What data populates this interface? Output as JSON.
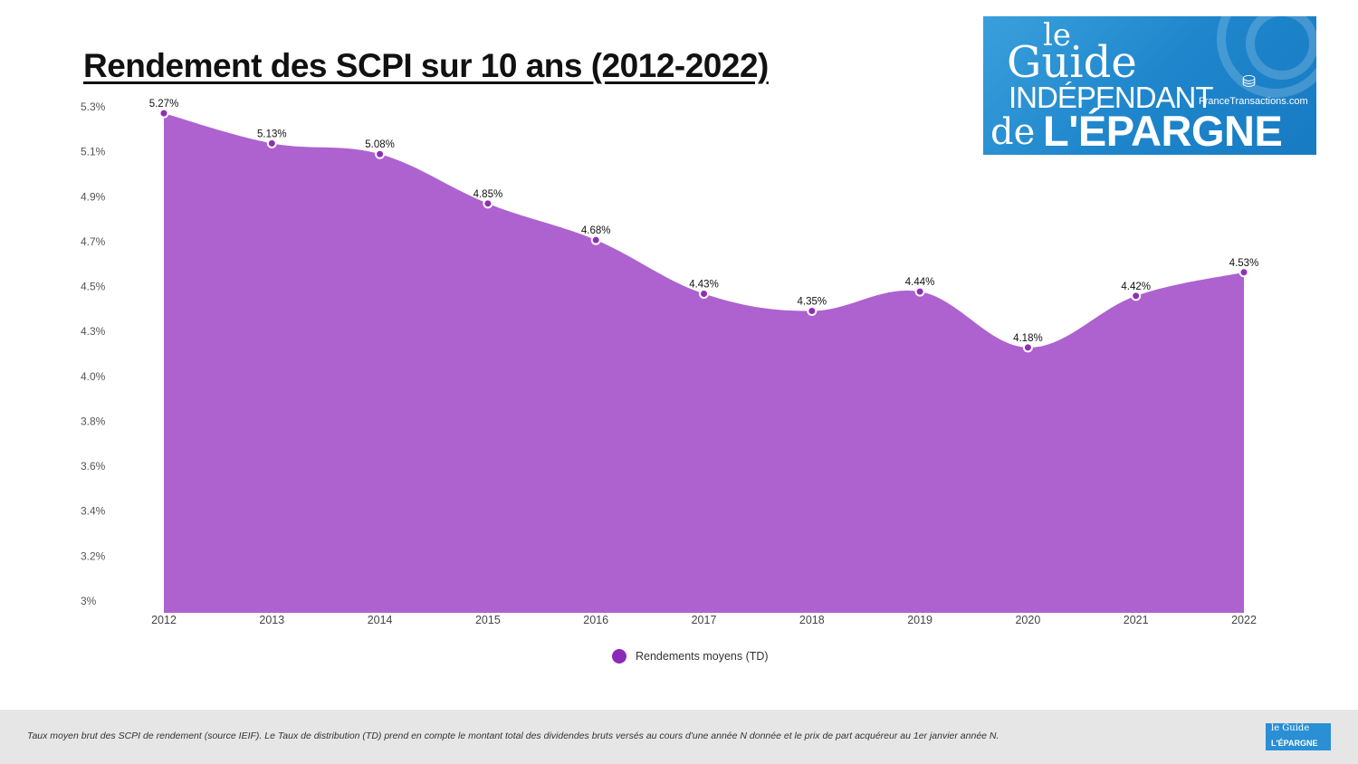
{
  "page": {
    "title": "Rendement des SCPI sur 10 ans (2012-2022)",
    "footer_note": "Taux moyen brut des SCPI de rendement (source IEIF). Le Taux de distribution (TD) prend en compte le montant total des dividendes bruts versés au cours d'une année N donnée et le prix de part acquéreur au 1er janvier année N."
  },
  "logo": {
    "line1": "le",
    "line2": "Guide",
    "line3": "INDÉPENDANT",
    "line4": "de",
    "line5": "L'ÉPARGNE",
    "partner": "FranceTransactions.com"
  },
  "mini_logo": {
    "line1": "le Guide",
    "line2": "L'ÉPARGNE"
  },
  "colors": {
    "area": "#ad62d0",
    "marker": "#8e2fb6",
    "legend_dot": "#8a2bb8",
    "footer_bg": "#e6e6e6",
    "logo_blue": "#1f86cc"
  },
  "chart_data": {
    "type": "area",
    "title": "Rendement des SCPI sur 10 ans (2012-2022)",
    "categories": [
      "2012",
      "2013",
      "2014",
      "2015",
      "2016",
      "2017",
      "2018",
      "2019",
      "2020",
      "2021",
      "2022"
    ],
    "series": [
      {
        "name": "Rendements moyens (TD)",
        "values": [
          5.27,
          5.13,
          5.08,
          4.85,
          4.68,
          4.43,
          4.35,
          4.44,
          4.18,
          4.42,
          4.53
        ],
        "data_labels": [
          "5.27%",
          "5.13%",
          "5.08%",
          "4.85%",
          "4.68%",
          "4.43%",
          "4.35%",
          "4.44%",
          "4.18%",
          "4.42%",
          "4.53%"
        ]
      }
    ],
    "y_tick_labels": [
      "3%",
      "3.2%",
      "3.4%",
      "3.6%",
      "3.8%",
      "4.0%",
      "4.3%",
      "4.5%",
      "4.7%",
      "4.9%",
      "5.1%",
      "5.3%"
    ],
    "ylim": [
      3.0,
      5.3
    ],
    "xlabel": "",
    "ylabel": "",
    "legend": "bottom-center",
    "grid": false
  }
}
